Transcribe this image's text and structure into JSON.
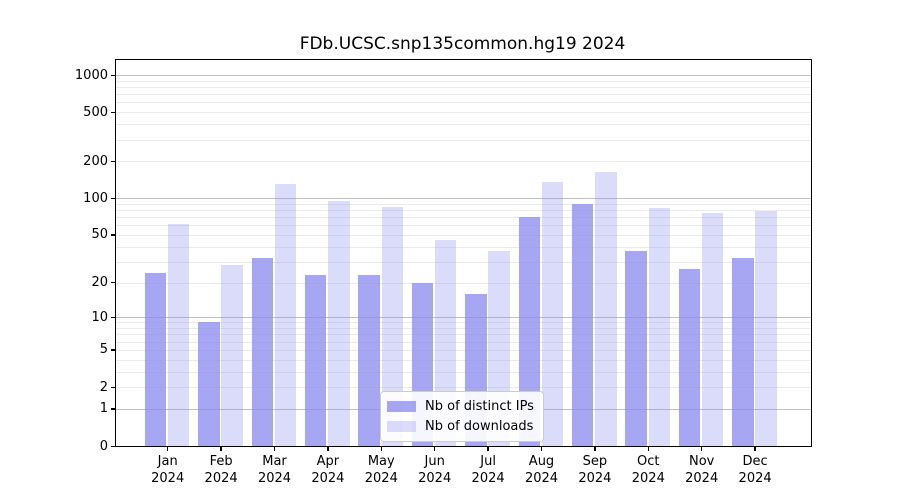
{
  "title": "FDb.UCSC.snp135common.hg19 2024",
  "chart_data": {
    "type": "bar",
    "title": "FDb.UCSC.snp135common.hg19 2024",
    "months": [
      "Jan",
      "Feb",
      "Mar",
      "Apr",
      "May",
      "Jun",
      "Jul",
      "Aug",
      "Sep",
      "Oct",
      "Nov",
      "Dec"
    ],
    "year_label": "2024",
    "categories": [
      "Jan 2024",
      "Feb 2024",
      "Mar 2024",
      "Apr 2024",
      "May 2024",
      "Jun 2024",
      "Jul 2024",
      "Aug 2024",
      "Sep 2024",
      "Oct 2024",
      "Nov 2024",
      "Dec 2024"
    ],
    "series": [
      {
        "name": "Nb of distinct IPs",
        "color": "#8888ee",
        "opacity": 0.75,
        "values": [
          24,
          9,
          32,
          23,
          23,
          20,
          16,
          70,
          89,
          37,
          26,
          32
        ]
      },
      {
        "name": "Nb of downloads",
        "color": "#8888ee",
        "opacity": 0.3,
        "values": [
          62,
          28,
          131,
          95,
          85,
          45,
          37,
          136,
          165,
          83,
          75,
          79
        ]
      }
    ],
    "y_scale": "log10(1+y)",
    "y_ticks": [
      0,
      1,
      2,
      5,
      10,
      20,
      50,
      100,
      200,
      500,
      1000
    ],
    "ylim": [
      0,
      1330
    ],
    "xlabel": "",
    "ylabel": "",
    "grid": "horizontal major+minor",
    "legend_position": "lower center"
  },
  "colors": {
    "bar_base": "#8888ee",
    "grid_major": "#c0c0c0",
    "grid_minor": "#ebebeb",
    "spine": "#000000"
  }
}
